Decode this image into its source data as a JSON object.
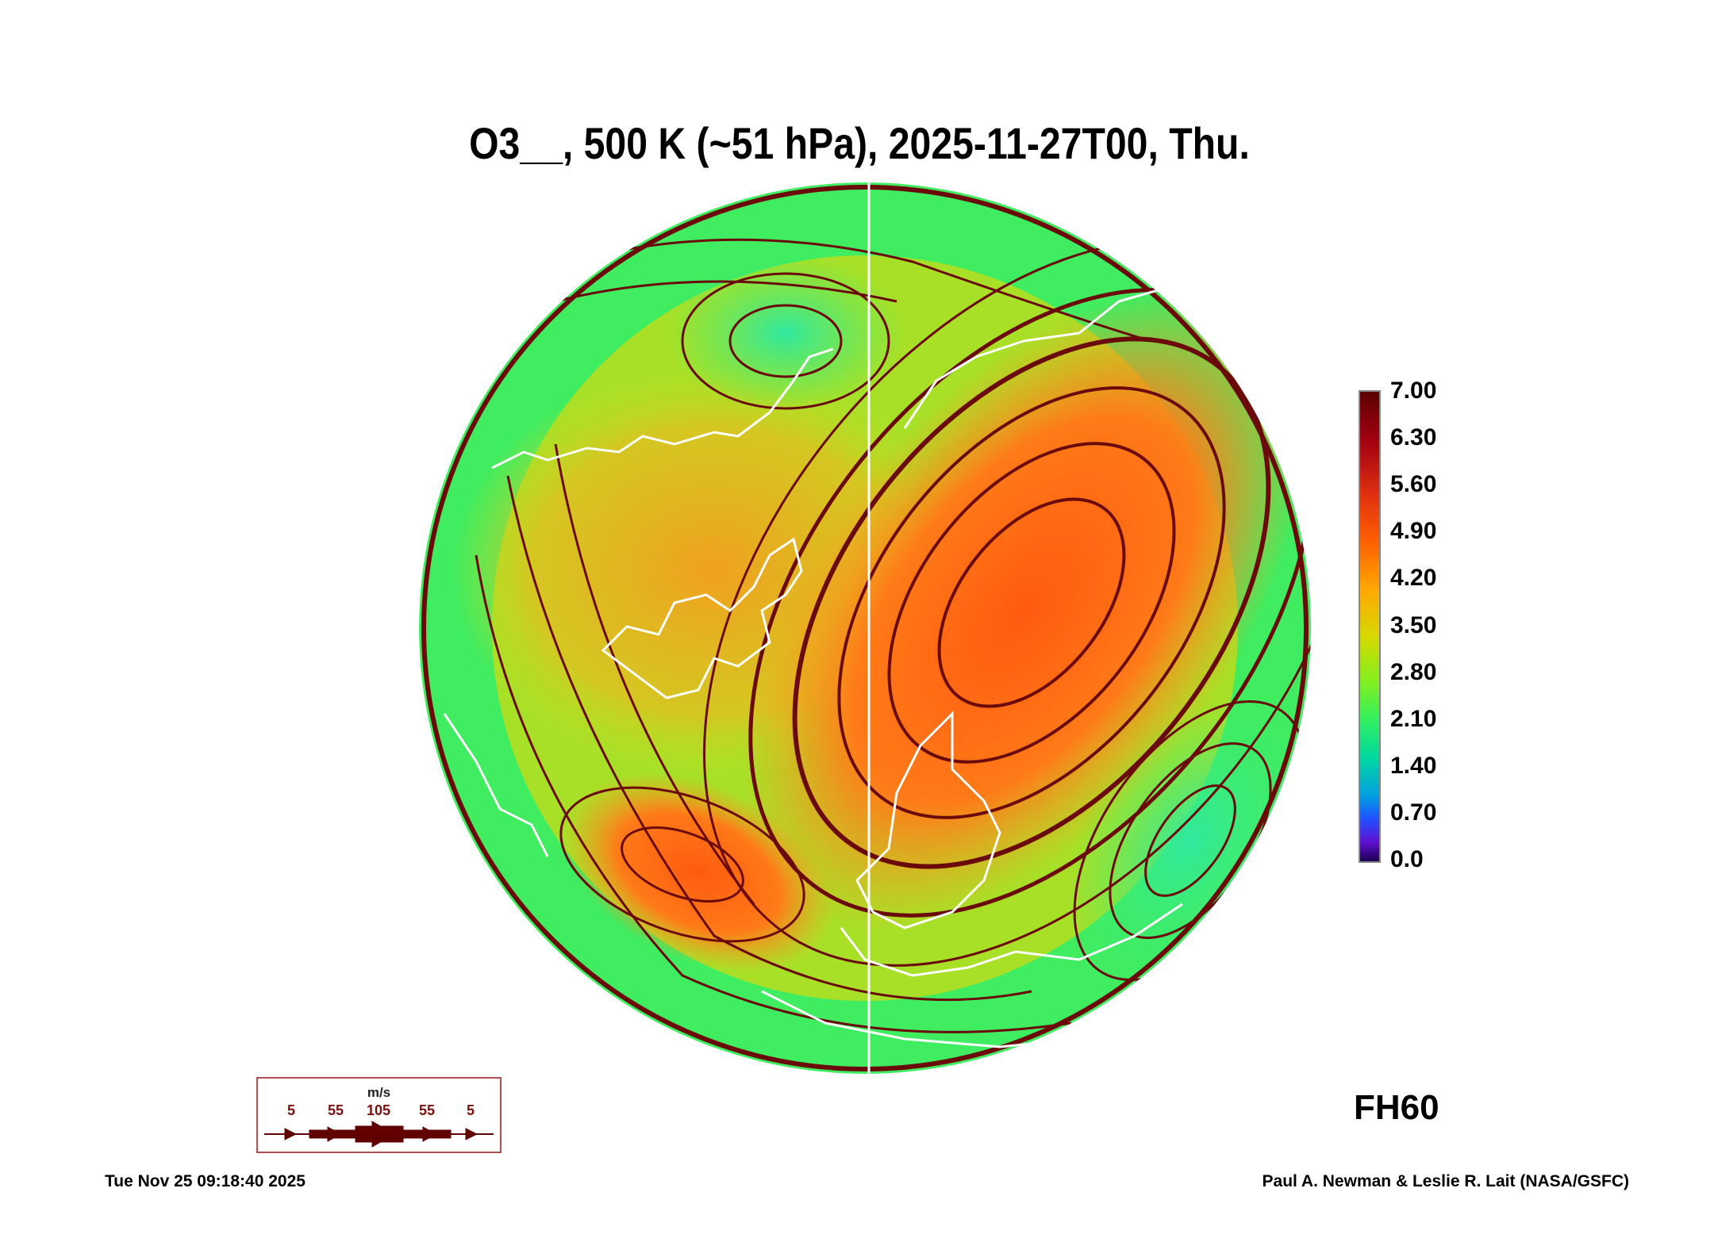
{
  "chart_data": {
    "type": "heatmap",
    "title": "O3__, 500 K (~51 hPa), 2025-11-27T00, Thu.",
    "projection": "north-polar-stereographic",
    "field": "O3 mixing ratio with wind streamlines",
    "colorbar": {
      "ticks": [
        "7.00",
        "6.30",
        "5.60",
        "4.90",
        "4.20",
        "3.50",
        "2.80",
        "2.10",
        "1.40",
        "0.70",
        "0.0"
      ],
      "range": [
        0.0,
        7.0
      ]
    },
    "wind_legend": {
      "unit": "m/s",
      "values": [
        "5",
        "55",
        "105",
        "55",
        "5"
      ]
    },
    "forecast_hour_label": "FH60"
  },
  "footer": {
    "timestamp": "Tue Nov 25 09:18:40 2025",
    "credit": "Paul A. Newman & Leslie R. Lait (NASA/GSFC)"
  },
  "colors": {
    "streamline": "#6a0a0a",
    "coast": "#ffffff",
    "low": "#30e870",
    "high": "#ff6a10"
  }
}
